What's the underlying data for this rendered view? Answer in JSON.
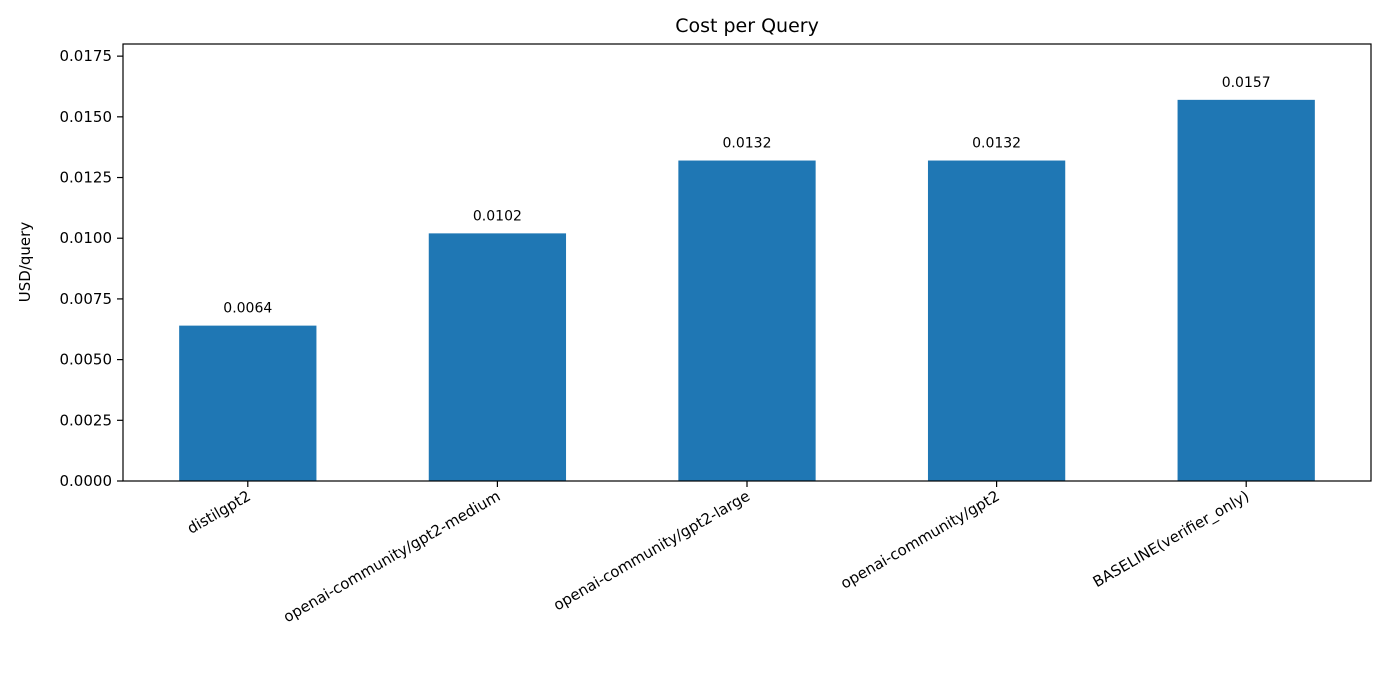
{
  "chart_data": {
    "type": "bar",
    "title": "Cost per Query",
    "xlabel": "",
    "ylabel": "USD/query",
    "categories": [
      "distilgpt2",
      "openai-community/gpt2-medium",
      "openai-community/gpt2-large",
      "openai-community/gpt2",
      "BASELINE(verifier_only)"
    ],
    "values": [
      0.0064,
      0.0102,
      0.0132,
      0.0132,
      0.0157
    ],
    "data_labels": [
      "0.0064",
      "0.0102",
      "0.0132",
      "0.0132",
      "0.0157"
    ],
    "ylim": [
      0,
      0.018
    ],
    "yticks": [
      0,
      0.0025,
      0.005,
      0.0075,
      0.01,
      0.0125,
      0.015,
      0.0175
    ],
    "ytick_labels": [
      "0.0000",
      "0.0025",
      "0.0050",
      "0.0075",
      "0.0100",
      "0.0125",
      "0.0150",
      "0.0175"
    ],
    "grid": false,
    "bar_color": "#1f77b4"
  }
}
